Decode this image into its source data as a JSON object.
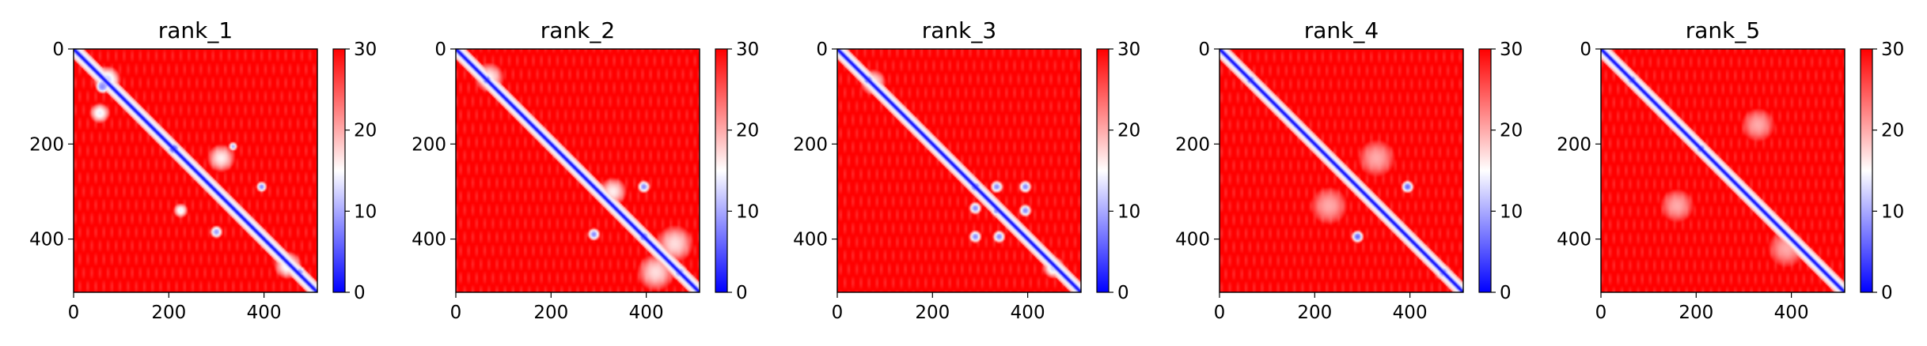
{
  "chart_data": [
    {
      "type": "heatmap",
      "title": "rank_1",
      "matrix_size": 512,
      "xlim": [
        0,
        512
      ],
      "ylim": [
        512,
        0
      ],
      "xticks": [
        0,
        200,
        400
      ],
      "yticks": [
        0,
        200,
        400
      ],
      "color_range": [
        0,
        30
      ],
      "colorbar_ticks": [
        0,
        10,
        20,
        30
      ],
      "colormap": "bwr",
      "diagonal_value": 0,
      "background_value": 30,
      "features": [
        {
          "x": 70,
          "y": 65,
          "r": 30,
          "v": 12
        },
        {
          "x": 60,
          "y": 80,
          "r": 14,
          "v": 8
        },
        {
          "x": 55,
          "y": 135,
          "r": 22,
          "v": 14
        },
        {
          "x": 210,
          "y": 210,
          "r": 16,
          "v": 4
        },
        {
          "x": 335,
          "y": 205,
          "r": 10,
          "v": 10
        },
        {
          "x": 310,
          "y": 230,
          "r": 30,
          "v": 16
        },
        {
          "x": 395,
          "y": 290,
          "r": 12,
          "v": 8
        },
        {
          "x": 300,
          "y": 385,
          "r": 14,
          "v": 9
        },
        {
          "x": 225,
          "y": 340,
          "r": 16,
          "v": 14
        },
        {
          "x": 450,
          "y": 455,
          "r": 30,
          "v": 14
        },
        {
          "x": 475,
          "y": 470,
          "r": 14,
          "v": 8
        }
      ]
    },
    {
      "type": "heatmap",
      "title": "rank_2",
      "matrix_size": 512,
      "xlim": [
        0,
        512
      ],
      "ylim": [
        512,
        0
      ],
      "xticks": [
        0,
        200,
        400
      ],
      "yticks": [
        0,
        200,
        400
      ],
      "color_range": [
        0,
        30
      ],
      "colorbar_ticks": [
        0,
        10,
        20,
        30
      ],
      "colormap": "bwr",
      "diagonal_value": 0,
      "background_value": 30,
      "features": [
        {
          "x": 65,
          "y": 65,
          "r": 14,
          "v": 5
        },
        {
          "x": 70,
          "y": 60,
          "r": 32,
          "v": 16
        },
        {
          "x": 105,
          "y": 105,
          "r": 12,
          "v": 10
        },
        {
          "x": 395,
          "y": 290,
          "r": 14,
          "v": 8
        },
        {
          "x": 330,
          "y": 300,
          "r": 30,
          "v": 16
        },
        {
          "x": 290,
          "y": 390,
          "r": 14,
          "v": 8
        },
        {
          "x": 395,
          "y": 395,
          "r": 16,
          "v": 6
        },
        {
          "x": 460,
          "y": 410,
          "r": 40,
          "v": 17
        },
        {
          "x": 420,
          "y": 470,
          "r": 40,
          "v": 17
        },
        {
          "x": 470,
          "y": 470,
          "r": 18,
          "v": 8
        }
      ]
    },
    {
      "type": "heatmap",
      "title": "rank_3",
      "matrix_size": 512,
      "xlim": [
        0,
        512
      ],
      "ylim": [
        512,
        0
      ],
      "xticks": [
        0,
        200,
        400
      ],
      "yticks": [
        0,
        200,
        400
      ],
      "color_range": [
        0,
        30
      ],
      "colorbar_ticks": [
        0,
        10,
        20,
        30
      ],
      "colormap": "bwr",
      "diagonal_value": 0,
      "background_value": 30,
      "features": [
        {
          "x": 65,
          "y": 65,
          "r": 14,
          "v": 5
        },
        {
          "x": 75,
          "y": 70,
          "r": 28,
          "v": 16
        },
        {
          "x": 290,
          "y": 290,
          "r": 16,
          "v": 6
        },
        {
          "x": 335,
          "y": 290,
          "r": 14,
          "v": 8
        },
        {
          "x": 395,
          "y": 290,
          "r": 14,
          "v": 8
        },
        {
          "x": 290,
          "y": 335,
          "r": 14,
          "v": 8
        },
        {
          "x": 335,
          "y": 340,
          "r": 14,
          "v": 8
        },
        {
          "x": 395,
          "y": 340,
          "r": 14,
          "v": 8
        },
        {
          "x": 290,
          "y": 395,
          "r": 14,
          "v": 8
        },
        {
          "x": 340,
          "y": 395,
          "r": 14,
          "v": 8
        },
        {
          "x": 455,
          "y": 460,
          "r": 24,
          "v": 12
        },
        {
          "x": 480,
          "y": 480,
          "r": 12,
          "v": 8
        }
      ]
    },
    {
      "type": "heatmap",
      "title": "rank_4",
      "matrix_size": 512,
      "xlim": [
        0,
        512
      ],
      "ylim": [
        512,
        0
      ],
      "xticks": [
        0,
        200,
        400
      ],
      "yticks": [
        0,
        200,
        400
      ],
      "color_range": [
        0,
        30
      ],
      "colorbar_ticks": [
        0,
        10,
        20,
        30
      ],
      "colormap": "bwr",
      "diagonal_value": 0,
      "background_value": 30,
      "features": [
        {
          "x": 65,
          "y": 65,
          "r": 14,
          "v": 5
        },
        {
          "x": 395,
          "y": 290,
          "r": 14,
          "v": 6
        },
        {
          "x": 290,
          "y": 395,
          "r": 14,
          "v": 6
        },
        {
          "x": 330,
          "y": 230,
          "r": 40,
          "v": 20
        },
        {
          "x": 230,
          "y": 330,
          "r": 40,
          "v": 20
        },
        {
          "x": 470,
          "y": 470,
          "r": 18,
          "v": 8
        }
      ]
    },
    {
      "type": "heatmap",
      "title": "rank_5",
      "matrix_size": 512,
      "xlim": [
        0,
        512
      ],
      "ylim": [
        512,
        0
      ],
      "xticks": [
        0,
        200,
        400
      ],
      "yticks": [
        0,
        200,
        400
      ],
      "color_range": [
        0,
        30
      ],
      "colorbar_ticks": [
        0,
        10,
        20,
        30
      ],
      "colormap": "bwr",
      "diagonal_value": 0,
      "background_value": 30,
      "features": [
        {
          "x": 65,
          "y": 65,
          "r": 14,
          "v": 5
        },
        {
          "x": 210,
          "y": 210,
          "r": 14,
          "v": 5
        },
        {
          "x": 330,
          "y": 160,
          "r": 36,
          "v": 20
        },
        {
          "x": 160,
          "y": 330,
          "r": 36,
          "v": 20
        },
        {
          "x": 390,
          "y": 420,
          "r": 40,
          "v": 20
        }
      ]
    }
  ]
}
